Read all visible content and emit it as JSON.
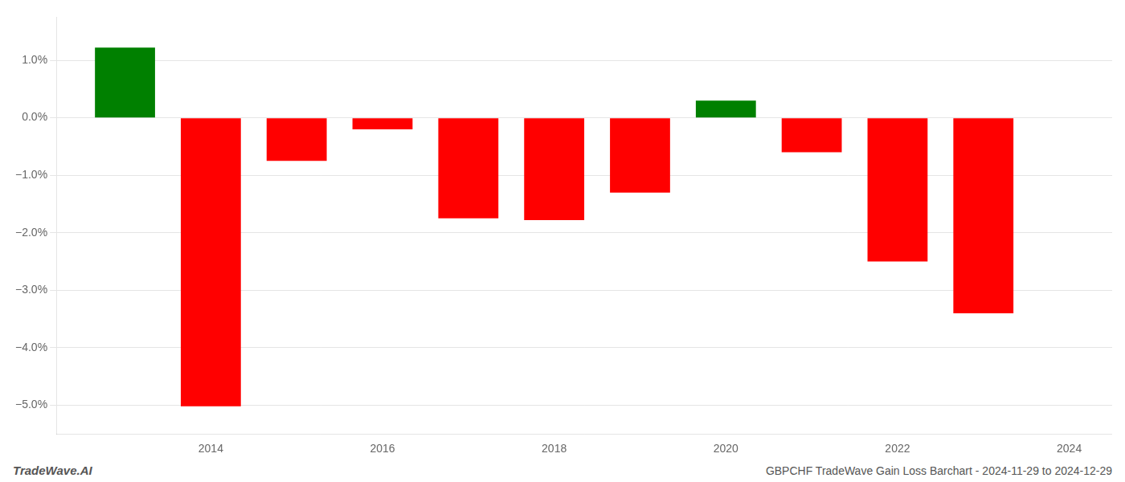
{
  "chart_data": {
    "type": "bar",
    "annotations": [
      "TradeWave.AI",
      "GBPCHF TradeWave Gain Loss Barchart - 2024-11-29 to 2024-12-29"
    ],
    "x": [
      2013,
      2014,
      2015,
      2016,
      2017,
      2018,
      2019,
      2020,
      2021,
      2022,
      2023
    ],
    "values": [
      1.22,
      -5.02,
      -0.75,
      -0.2,
      -1.75,
      -1.78,
      -1.3,
      0.3,
      -0.6,
      -2.5,
      -3.4
    ],
    "colors": [
      "#008000",
      "#ff0000",
      "#ff0000",
      "#ff0000",
      "#ff0000",
      "#ff0000",
      "#ff0000",
      "#008000",
      "#ff0000",
      "#ff0000",
      "#ff0000"
    ],
    "xlim": [
      2012.2,
      2024.5
    ],
    "xticks": [
      2014,
      2016,
      2018,
      2020,
      2022,
      2024
    ],
    "ylim": [
      -5.5,
      1.75
    ],
    "yticks": [
      {
        "value": -5,
        "label": "−5.0%"
      },
      {
        "value": -4,
        "label": "−4.0%"
      },
      {
        "value": -3,
        "label": "−3.0%"
      },
      {
        "value": -2,
        "label": "−2.0%"
      },
      {
        "value": -1,
        "label": "−1.0%"
      },
      {
        "value": 0,
        "label": "0.0%"
      },
      {
        "value": 1,
        "label": "1.0%"
      }
    ],
    "grid": true
  }
}
